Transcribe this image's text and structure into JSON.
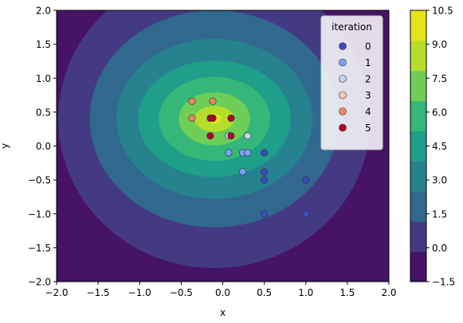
{
  "chart_data": {
    "type": "scatter",
    "subtype": "filled-contour-with-scatter-overlay",
    "xlabel": "x",
    "ylabel": "y",
    "xlim": [
      -2.0,
      2.0
    ],
    "ylim": [
      -2.0,
      2.0
    ],
    "x_ticks": [
      "−2.0",
      "−1.5",
      "−1.0",
      "−0.5",
      "0.0",
      "0.5",
      "1.0",
      "1.5",
      "2.0"
    ],
    "y_ticks": [
      "−2.0",
      "−1.5",
      "−1.0",
      "−0.5",
      "0.0",
      "0.5",
      "1.0",
      "1.5",
      "2.0"
    ],
    "grid": false,
    "contour": {
      "center": [
        -0.1,
        0.4
      ],
      "levels": [
        -1.5,
        0.0,
        1.5,
        3.0,
        4.5,
        6.0,
        7.5,
        9.0,
        10.5
      ],
      "level_labels": [
        "−1.5",
        "0.0",
        "1.5",
        "3.0",
        "4.5",
        "6.0",
        "7.5",
        "9.0",
        "10.5"
      ],
      "band_colors": [
        "#471365",
        "#443a83",
        "#31688e",
        "#26828e",
        "#1f9e89",
        "#35b779",
        "#6ece58",
        "#b5de2b",
        "#e4e419"
      ],
      "ellipse_semi_axes_by_level": [
        {
          "level": 0.0,
          "ax": 1.88,
          "ay": 2.2
        },
        {
          "level": 1.5,
          "ax": 1.5,
          "ay": 1.6
        },
        {
          "level": 3.0,
          "ax": 1.18,
          "ay": 1.18
        },
        {
          "level": 4.5,
          "ax": 0.92,
          "ay": 0.86
        },
        {
          "level": 6.0,
          "ax": 0.67,
          "ay": 0.62
        },
        {
          "level": 7.5,
          "ax": 0.43,
          "ay": 0.39
        },
        {
          "level": 9.0,
          "ax": 0.24,
          "ay": 0.19
        },
        {
          "level": 10.5,
          "ax": 0.08,
          "ay": 0.07
        }
      ]
    },
    "legend": {
      "title": "iteration",
      "placement": "top-right"
    },
    "series": [
      {
        "name": "0",
        "color": "#3b4cc0",
        "points": [
          [
            0.5,
            -0.1
          ],
          [
            0.5,
            -0.38
          ],
          [
            0.5,
            -0.5
          ],
          [
            1.0,
            -0.5
          ],
          [
            0.5,
            -1.0
          ],
          [
            1.0,
            -1.0
          ]
        ]
      },
      {
        "name": "1",
        "color": "#7b9ff9",
        "points": [
          [
            0.07,
            -0.1
          ],
          [
            0.24,
            -0.1
          ],
          [
            0.3,
            -0.1
          ],
          [
            0.24,
            -0.38
          ]
        ]
      },
      {
        "name": "2",
        "color": "#c0d4f5",
        "points": [
          [
            0.07,
            0.15
          ],
          [
            0.3,
            0.15
          ]
        ]
      },
      {
        "name": "3",
        "color": "#f2cbb7",
        "points": []
      },
      {
        "name": "4",
        "color": "#ee8468",
        "points": [
          [
            -0.37,
            0.66
          ],
          [
            -0.12,
            0.66
          ],
          [
            -0.37,
            0.41
          ],
          [
            -0.12,
            0.41
          ]
        ]
      },
      {
        "name": "5",
        "color": "#b40426",
        "points": [
          [
            -0.15,
            0.41
          ],
          [
            -0.12,
            0.41
          ],
          [
            0.1,
            0.41
          ],
          [
            -0.15,
            0.15
          ],
          [
            0.1,
            0.15
          ]
        ]
      }
    ]
  }
}
